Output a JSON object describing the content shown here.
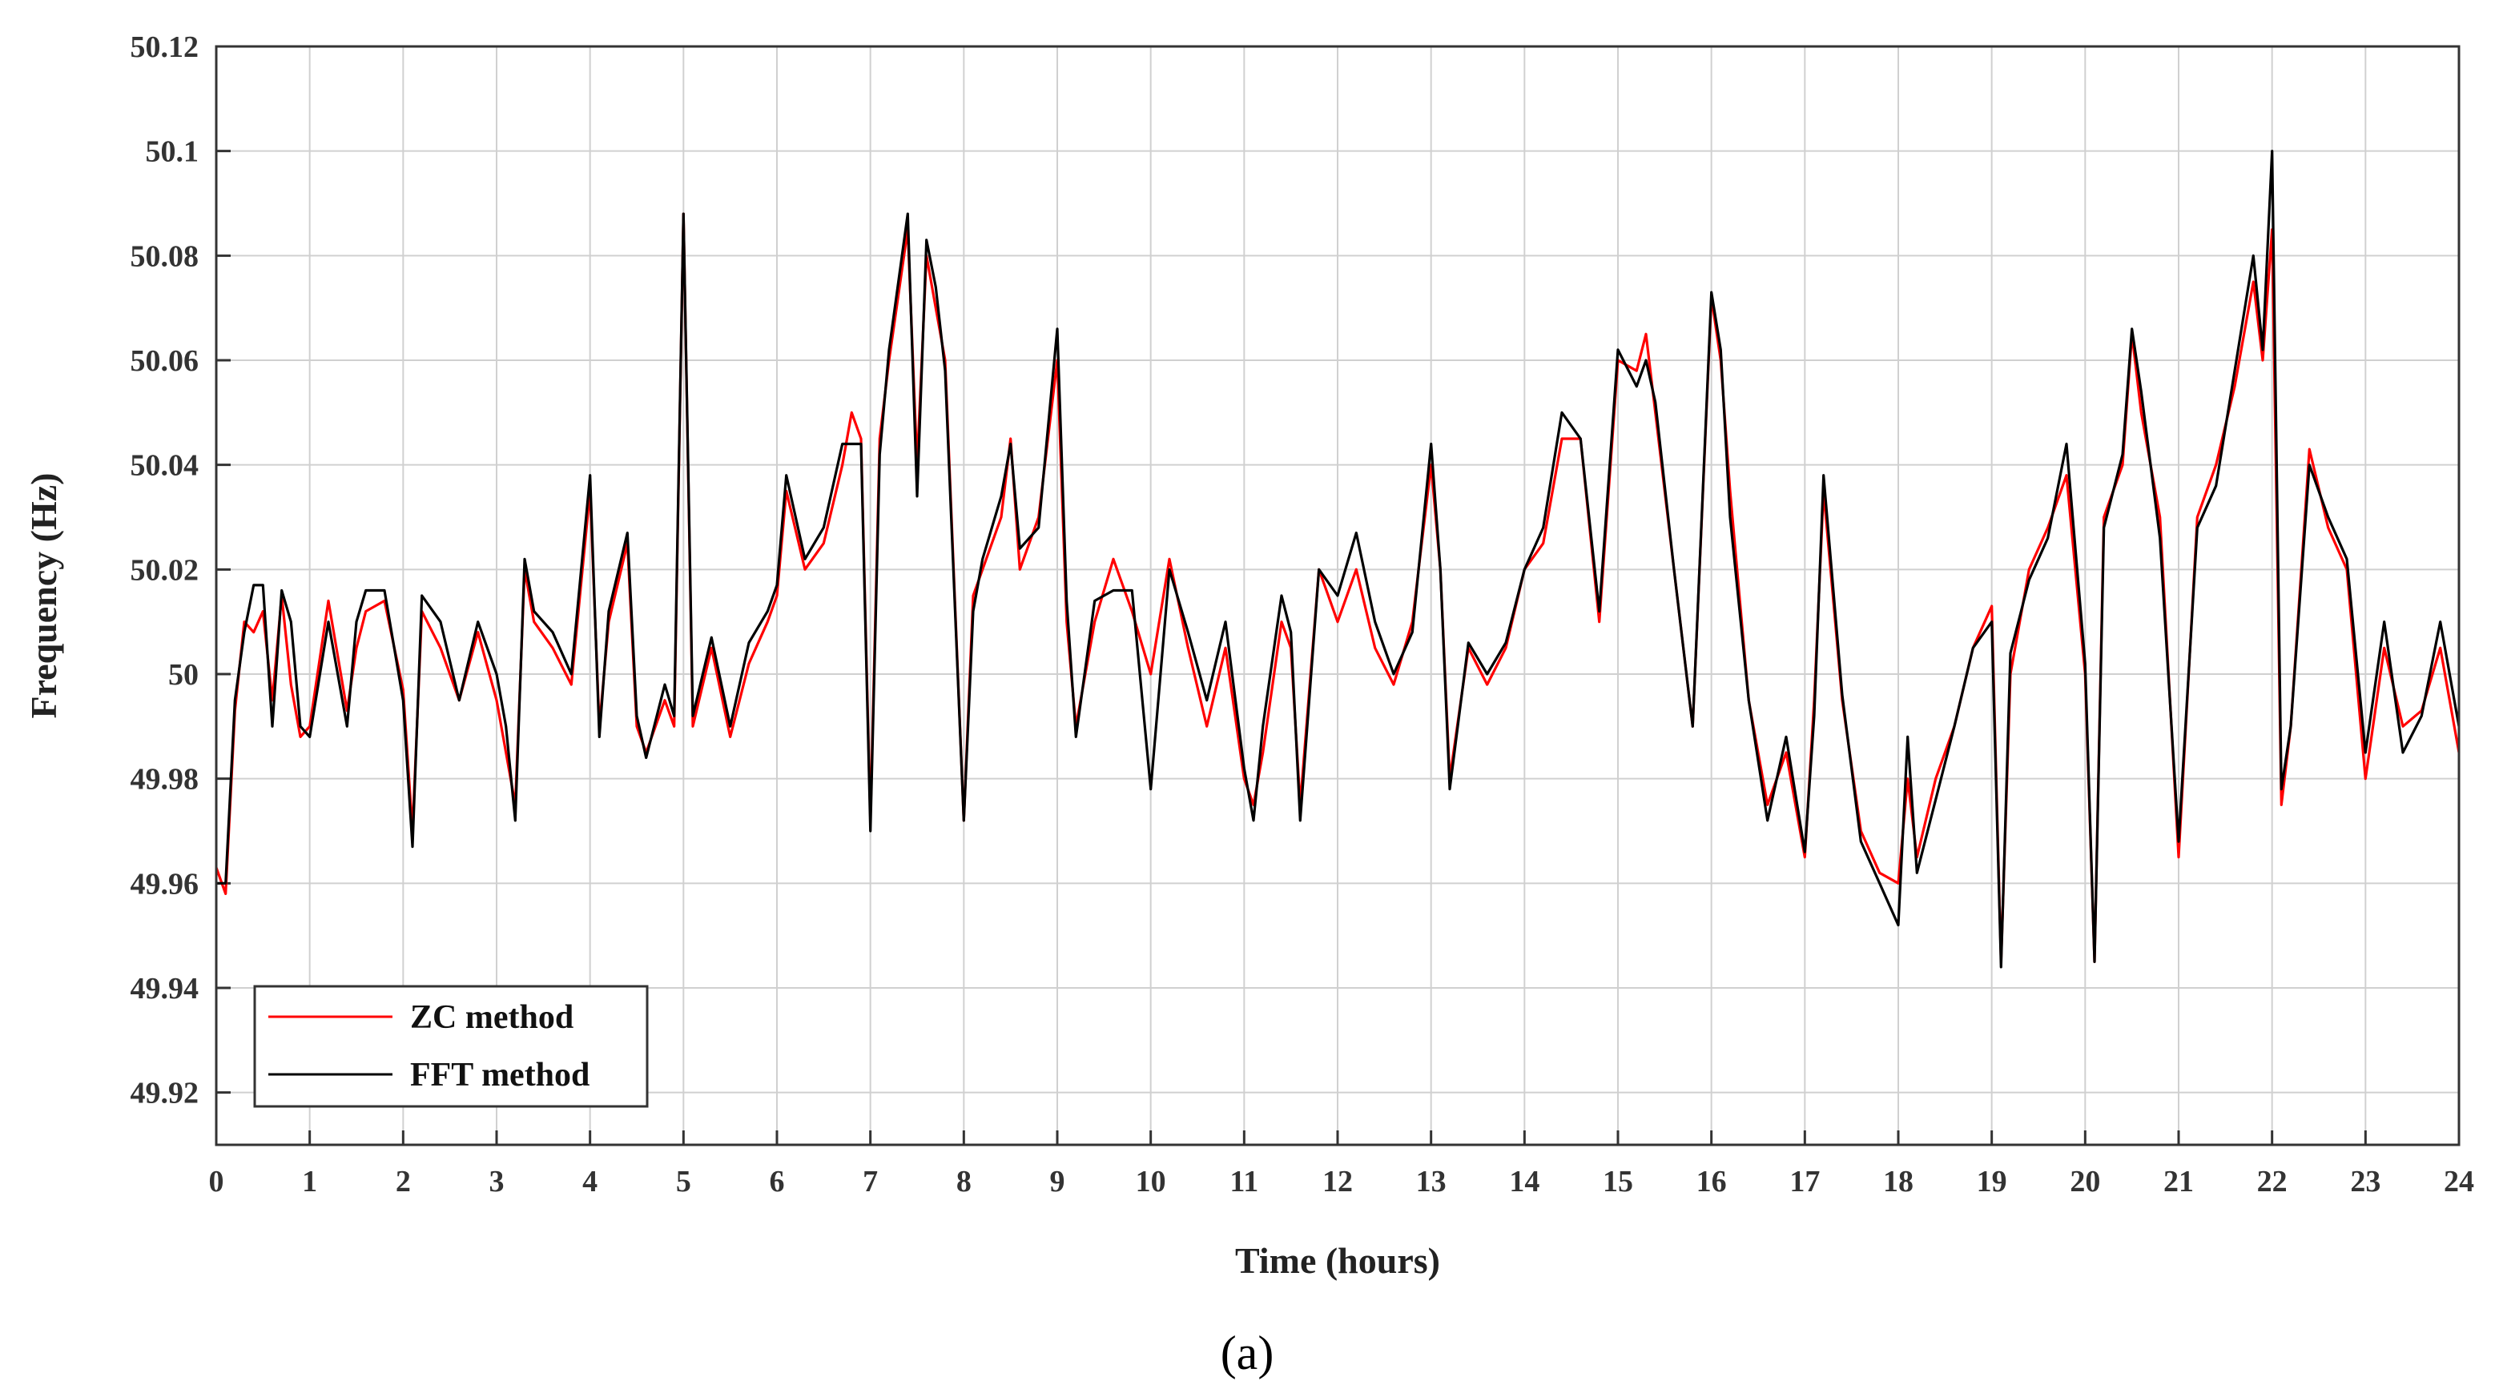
{
  "caption": "(a)",
  "chart_data": {
    "type": "line",
    "title": "",
    "xlabel": "Time (hours)",
    "ylabel": "Frequency (Hz)",
    "xlim": [
      0,
      24
    ],
    "ylim": [
      49.91,
      50.12
    ],
    "grid": true,
    "legend_position": "bottom-left",
    "x_ticks": [
      "0",
      "1",
      "2",
      "3",
      "4",
      "5",
      "6",
      "7",
      "8",
      "9",
      "10",
      "11",
      "12",
      "13",
      "14",
      "15",
      "16",
      "17",
      "18",
      "19",
      "20",
      "21",
      "22",
      "23",
      "24"
    ],
    "y_ticks": [
      "49.92",
      "49.94",
      "49.96",
      "49.98",
      "50",
      "50.02",
      "50.04",
      "50.06",
      "50.08",
      "50.1",
      "50.12"
    ],
    "series": [
      {
        "name": "ZC method",
        "color": "#ff0000",
        "x": [
          0,
          0.1,
          0.2,
          0.3,
          0.4,
          0.5,
          0.6,
          0.7,
          0.8,
          0.9,
          1.0,
          1.2,
          1.4,
          1.5,
          1.6,
          1.8,
          2.0,
          2.1,
          2.2,
          2.4,
          2.6,
          2.8,
          3.0,
          3.1,
          3.2,
          3.3,
          3.4,
          3.6,
          3.8,
          4.0,
          4.1,
          4.2,
          4.4,
          4.5,
          4.6,
          4.8,
          4.9,
          5.0,
          5.1,
          5.3,
          5.5,
          5.7,
          5.9,
          6.0,
          6.1,
          6.3,
          6.5,
          6.7,
          6.8,
          6.9,
          7.0,
          7.1,
          7.2,
          7.4,
          7.5,
          7.6,
          7.7,
          7.8,
          8.0,
          8.1,
          8.2,
          8.4,
          8.5,
          8.6,
          8.8,
          9.0,
          9.1,
          9.2,
          9.4,
          9.6,
          9.8,
          10.0,
          10.2,
          10.4,
          10.6,
          10.8,
          11.0,
          11.1,
          11.2,
          11.4,
          11.5,
          11.6,
          11.8,
          12.0,
          12.2,
          12.4,
          12.6,
          12.8,
          13.0,
          13.1,
          13.2,
          13.4,
          13.6,
          13.8,
          14.0,
          14.2,
          14.4,
          14.6,
          14.8,
          15.0,
          15.2,
          15.3,
          15.4,
          15.6,
          15.8,
          16.0,
          16.1,
          16.2,
          16.4,
          16.6,
          16.8,
          17.0,
          17.1,
          17.2,
          17.4,
          17.6,
          17.8,
          18.0,
          18.1,
          18.2,
          18.4,
          18.6,
          18.8,
          19.0,
          19.1,
          19.2,
          19.4,
          19.6,
          19.8,
          20.0,
          20.1,
          20.2,
          20.4,
          20.5,
          20.6,
          20.8,
          21.0,
          21.2,
          21.4,
          21.6,
          21.8,
          21.9,
          22.0,
          22.1,
          22.2,
          22.4,
          22.6,
          22.8,
          23.0,
          23.2,
          23.4,
          23.6,
          23.8,
          24.0
        ],
        "y": [
          49.963,
          49.958,
          49.993,
          50.01,
          50.008,
          50.012,
          49.995,
          50.015,
          49.998,
          49.988,
          49.99,
          50.014,
          49.993,
          50.005,
          50.012,
          50.014,
          49.997,
          49.97,
          50.012,
          50.005,
          49.995,
          50.008,
          49.995,
          49.985,
          49.975,
          50.02,
          50.01,
          50.005,
          49.998,
          50.035,
          49.99,
          50.01,
          50.025,
          49.99,
          49.985,
          49.995,
          49.99,
          50.088,
          49.99,
          50.005,
          49.988,
          50.002,
          50.01,
          50.015,
          50.035,
          50.02,
          50.025,
          50.04,
          50.05,
          50.045,
          49.972,
          50.045,
          50.06,
          50.085,
          50.04,
          50.08,
          50.07,
          50.06,
          49.972,
          50.015,
          50.02,
          50.03,
          50.045,
          50.02,
          50.03,
          50.06,
          50.01,
          49.99,
          50.01,
          50.022,
          50.012,
          50.0,
          50.022,
          50.005,
          49.99,
          50.005,
          49.98,
          49.975,
          49.985,
          50.01,
          50.005,
          49.975,
          50.02,
          50.01,
          50.02,
          50.005,
          49.998,
          50.01,
          50.04,
          50.02,
          49.98,
          50.005,
          49.998,
          50.005,
          50.02,
          50.025,
          50.045,
          50.045,
          50.01,
          50.06,
          50.058,
          50.065,
          50.05,
          50.02,
          49.99,
          50.072,
          50.06,
          50.035,
          49.995,
          49.975,
          49.985,
          49.965,
          49.995,
          50.035,
          49.995,
          49.97,
          49.962,
          49.96,
          49.98,
          49.965,
          49.98,
          49.99,
          50.005,
          50.013,
          49.945,
          50.0,
          50.02,
          50.028,
          50.038,
          50.0,
          49.945,
          50.03,
          50.04,
          50.065,
          50.05,
          50.03,
          49.965,
          50.03,
          50.04,
          50.055,
          50.075,
          50.06,
          50.085,
          49.975,
          49.99,
          50.043,
          50.028,
          50.02,
          49.98,
          50.005,
          49.99,
          49.993,
          50.005,
          49.985
        ]
      },
      {
        "name": "FFT method",
        "color": "#000000",
        "x": [
          0,
          0.1,
          0.2,
          0.3,
          0.4,
          0.5,
          0.6,
          0.7,
          0.8,
          0.9,
          1.0,
          1.2,
          1.4,
          1.5,
          1.6,
          1.8,
          2.0,
          2.1,
          2.2,
          2.4,
          2.6,
          2.8,
          3.0,
          3.1,
          3.2,
          3.3,
          3.4,
          3.6,
          3.8,
          4.0,
          4.1,
          4.2,
          4.4,
          4.5,
          4.6,
          4.8,
          4.9,
          5.0,
          5.1,
          5.3,
          5.5,
          5.7,
          5.9,
          6.0,
          6.1,
          6.3,
          6.5,
          6.7,
          6.8,
          6.9,
          7.0,
          7.1,
          7.2,
          7.4,
          7.5,
          7.6,
          7.7,
          7.8,
          8.0,
          8.1,
          8.2,
          8.4,
          8.5,
          8.6,
          8.8,
          9.0,
          9.1,
          9.2,
          9.4,
          9.6,
          9.8,
          10.0,
          10.2,
          10.4,
          10.6,
          10.8,
          11.0,
          11.1,
          11.2,
          11.4,
          11.5,
          11.6,
          11.8,
          12.0,
          12.2,
          12.4,
          12.6,
          12.8,
          13.0,
          13.1,
          13.2,
          13.4,
          13.6,
          13.8,
          14.0,
          14.2,
          14.4,
          14.6,
          14.8,
          15.0,
          15.2,
          15.3,
          15.4,
          15.6,
          15.8,
          16.0,
          16.1,
          16.2,
          16.4,
          16.6,
          16.8,
          17.0,
          17.1,
          17.2,
          17.4,
          17.6,
          17.8,
          18.0,
          18.1,
          18.2,
          18.4,
          18.6,
          18.8,
          19.0,
          19.1,
          19.2,
          19.4,
          19.6,
          19.8,
          20.0,
          20.1,
          20.2,
          20.4,
          20.5,
          20.6,
          20.8,
          21.0,
          21.2,
          21.4,
          21.6,
          21.8,
          21.9,
          22.0,
          22.1,
          22.2,
          22.4,
          22.6,
          22.8,
          23.0,
          23.2,
          23.4,
          23.6,
          23.8,
          24.0
        ],
        "y": [
          49.96,
          49.96,
          49.995,
          50.008,
          50.017,
          50.017,
          49.99,
          50.016,
          50.01,
          49.99,
          49.988,
          50.01,
          49.99,
          50.01,
          50.016,
          50.016,
          49.995,
          49.967,
          50.015,
          50.01,
          49.995,
          50.01,
          50.0,
          49.99,
          49.972,
          50.022,
          50.012,
          50.008,
          50.0,
          50.038,
          49.988,
          50.012,
          50.027,
          49.992,
          49.984,
          49.998,
          49.992,
          50.088,
          49.992,
          50.007,
          49.99,
          50.006,
          50.012,
          50.017,
          50.038,
          50.022,
          50.028,
          50.044,
          50.044,
          50.044,
          49.97,
          50.042,
          50.062,
          50.088,
          50.034,
          50.083,
          50.074,
          50.058,
          49.972,
          50.012,
          50.022,
          50.034,
          50.044,
          50.024,
          50.028,
          50.066,
          50.014,
          49.988,
          50.014,
          50.016,
          50.016,
          49.978,
          50.02,
          50.008,
          49.995,
          50.01,
          49.982,
          49.972,
          49.99,
          50.015,
          50.008,
          49.972,
          50.02,
          50.015,
          50.027,
          50.01,
          50.0,
          50.008,
          50.044,
          50.02,
          49.978,
          50.006,
          50.0,
          50.006,
          50.02,
          50.028,
          50.05,
          50.045,
          50.012,
          50.062,
          50.055,
          50.06,
          50.052,
          50.02,
          49.99,
          50.073,
          50.062,
          50.03,
          49.995,
          49.972,
          49.988,
          49.966,
          49.992,
          50.038,
          49.996,
          49.968,
          49.96,
          49.952,
          49.988,
          49.962,
          49.976,
          49.99,
          50.005,
          50.01,
          49.944,
          50.004,
          50.018,
          50.026,
          50.044,
          50.002,
          49.945,
          50.028,
          50.042,
          50.066,
          50.054,
          50.026,
          49.968,
          50.028,
          50.036,
          50.058,
          50.08,
          50.062,
          50.1,
          49.978,
          49.99,
          50.04,
          50.03,
          50.022,
          49.985,
          50.01,
          49.985,
          49.992,
          50.01,
          49.99
        ]
      }
    ]
  }
}
